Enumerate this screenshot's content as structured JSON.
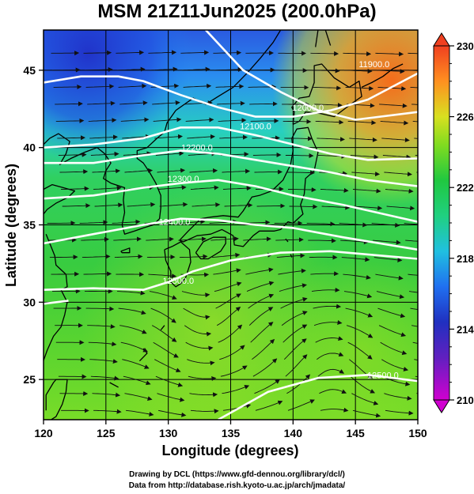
{
  "title": "MSM 21Z11Jun2025 (200.0hPa)",
  "x_axis": {
    "label": "Longitude (degrees)",
    "range": [
      120,
      150
    ],
    "ticks": [
      "120",
      "125",
      "130",
      "135",
      "140",
      "145",
      "150"
    ]
  },
  "y_axis": {
    "label": "Latitude  (degrees)",
    "range": [
      22.4,
      47.6
    ],
    "ticks": [
      "25",
      "30",
      "35",
      "40",
      "45"
    ]
  },
  "colorbar": {
    "range": [
      210,
      230
    ],
    "ticks": [
      "210",
      "214",
      "218",
      "222",
      "226",
      "230"
    ],
    "colors": [
      "#d000d0",
      "#2030c0",
      "#2090ff",
      "#20d0c0",
      "#20c040",
      "#40d020",
      "#a0e020",
      "#e0d020",
      "#ff8020",
      "#f05020"
    ]
  },
  "contours": {
    "color": "#ffffff",
    "labels": [
      "11900.0",
      "12000.0",
      "12100.0",
      "12200.0",
      "12300.0",
      "12400.0",
      "12500.0",
      "12500.0"
    ]
  },
  "credits": {
    "line1": "Drawing by DCL (https://www.gfd-dennou.org/library/dcl/)",
    "line2": "Data from http://database.rish.kyoto-u.ac.jp/arch/jmadata/"
  }
}
